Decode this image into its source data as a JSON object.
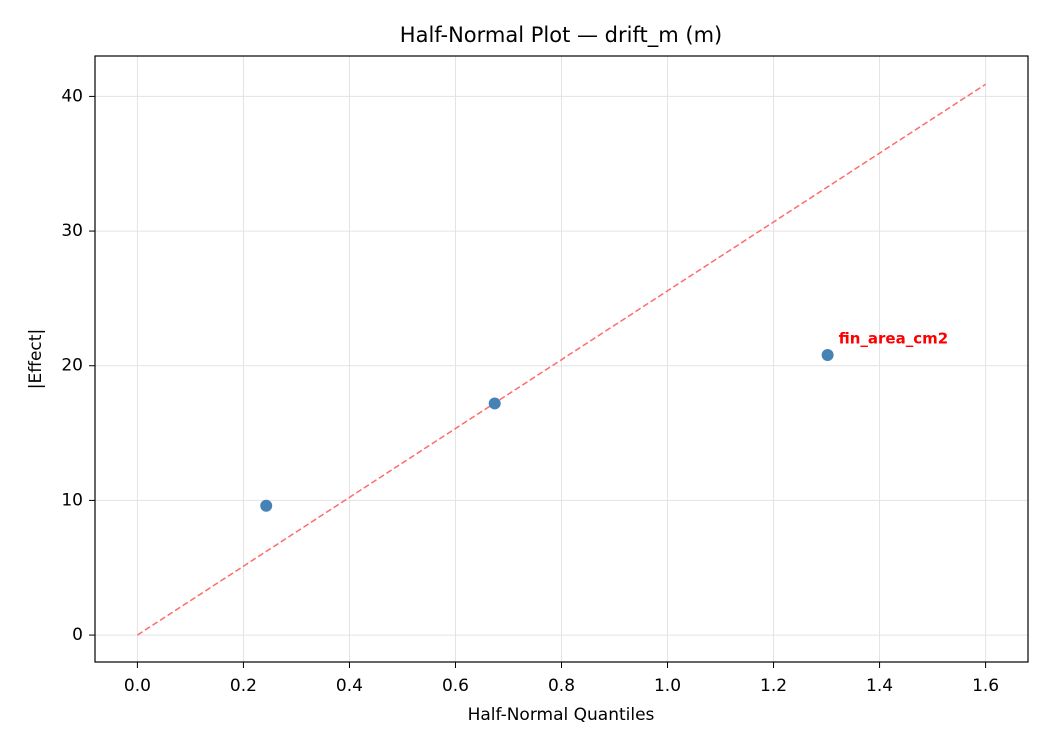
{
  "chart_data": {
    "type": "scatter",
    "title": "Half-Normal Plot — drift_m (m)",
    "x_label": "Half-Normal Quantiles",
    "y_label": "|Effect|",
    "x": [
      0.243,
      0.674,
      1.302
    ],
    "values": [
      9.6,
      17.2,
      20.8
    ],
    "color": "#4682b4",
    "reference_line": {
      "x": [
        0,
        1.6
      ],
      "values": [
        0,
        40.9
      ],
      "color": "#ff6b6b",
      "style": "dashed"
    },
    "annotations": [
      {
        "text": "fin_area_cm2",
        "x": 1.302,
        "y": 20.8,
        "color": "#ff0000"
      }
    ],
    "xlim": [
      -0.08,
      1.68
    ],
    "ylim": [
      -2,
      43
    ],
    "xticks": [
      {
        "value": 0,
        "label": "0.0"
      },
      0.2,
      0.4,
      0.6,
      0.8,
      {
        "value": 1,
        "label": "1.0"
      },
      1.2,
      1.4,
      1.6
    ],
    "yticks": [
      0,
      10,
      20,
      30,
      40
    ],
    "grid": true
  }
}
